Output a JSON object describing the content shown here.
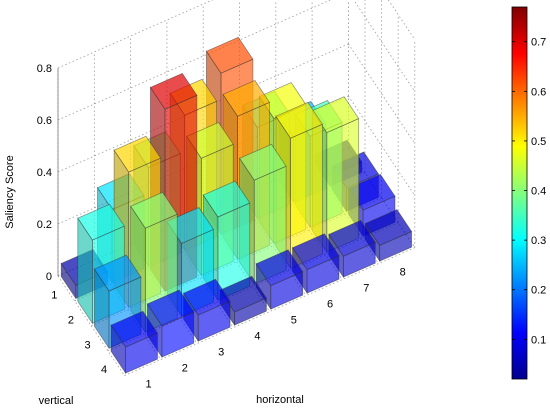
{
  "chart_data": {
    "type": "bar3d",
    "title": "",
    "xlabel": "horizontal",
    "ylabel": "vertical",
    "zlabel": "Saliency Score",
    "x_ticks": [
      "1",
      "2",
      "3",
      "4",
      "5",
      "6",
      "7",
      "8"
    ],
    "y_ticks": [
      "1",
      "2",
      "3",
      "4"
    ],
    "z_ticks": [
      "0",
      "0.2",
      "0.4",
      "0.6",
      "0.8"
    ],
    "zlim": [
      0,
      0.8
    ],
    "colormap": "jet",
    "colorbar": {
      "ticks": [
        "0.1",
        "0.2",
        "0.3",
        "0.4",
        "0.5",
        "0.6",
        "0.7"
      ],
      "range": [
        0.02,
        0.77
      ]
    },
    "grid": true,
    "values": [
      [
        0.05,
        0.28,
        0.38,
        0.52,
        0.62,
        0.35,
        0.25,
        0.04
      ],
      [
        0.32,
        0.52,
        0.7,
        0.45,
        0.55,
        0.48,
        0.35,
        0.09
      ],
      [
        0.22,
        0.4,
        0.28,
        0.32,
        0.4,
        0.5,
        0.46,
        0.1
      ],
      [
        0.1,
        0.12,
        0.1,
        0.05,
        0.09,
        0.09,
        0.08,
        0.06
      ]
    ]
  }
}
